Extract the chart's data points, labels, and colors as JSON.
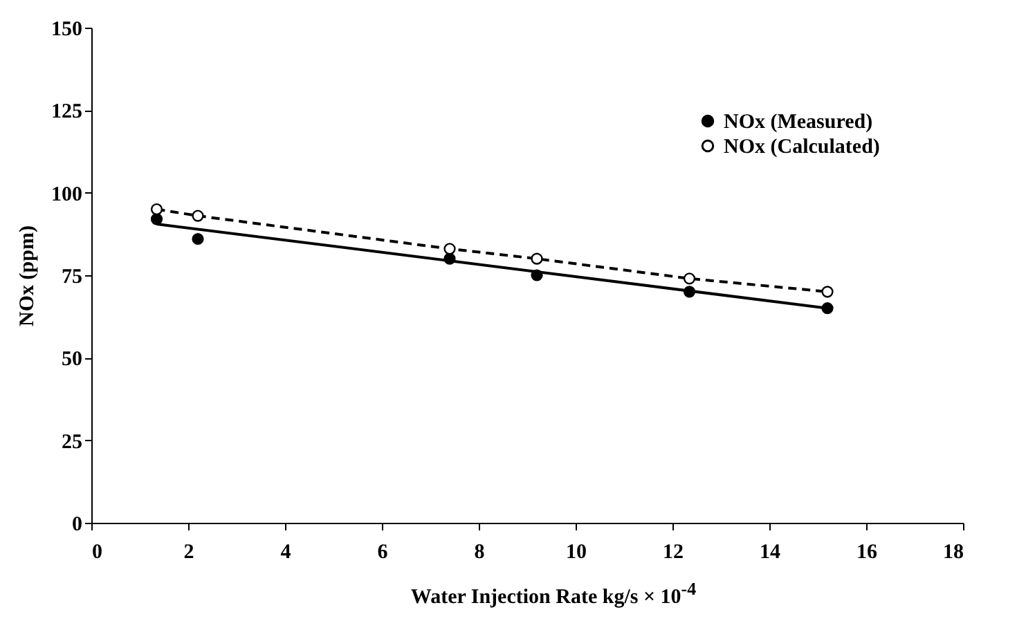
{
  "chart_data": {
    "type": "scatter",
    "xlabel": "Water Injection Rate kg/s  × 10$^{-4}$",
    "ylabel": "NOx (ppm)",
    "xlim": [
      0,
      18
    ],
    "xticks": [
      0,
      2,
      4,
      6,
      8,
      10,
      12,
      14,
      16,
      18
    ],
    "ylim": [
      0,
      150
    ],
    "yticks": [
      0,
      25,
      50,
      75,
      100,
      125,
      150
    ],
    "grid": false,
    "legend": "top right",
    "series": [
      {
        "type": "line",
        "color": "#000000",
        "line_style": "solid",
        "marker": "none",
        "x": [
          1.35,
          15.2
        ],
        "values": [
          90.5,
          65
        ]
      },
      {
        "name": "NOx (Measured)",
        "color": "#000000",
        "marker": "circle",
        "x": [
          1.35,
          2.2,
          7.4,
          9.2,
          12.35,
          15.2
        ],
        "values": [
          92,
          86,
          80,
          75,
          70,
          65
        ]
      },
      {
        "type": "line",
        "name": "NOx (Calculated)",
        "color": "#000000",
        "line_style": "dashed",
        "marker": "circle",
        "x": [
          1.35,
          2.2,
          7.4,
          9.2,
          12.35,
          15.2
        ],
        "values": [
          95,
          93,
          83,
          80,
          74,
          70
        ]
      }
    ]
  }
}
